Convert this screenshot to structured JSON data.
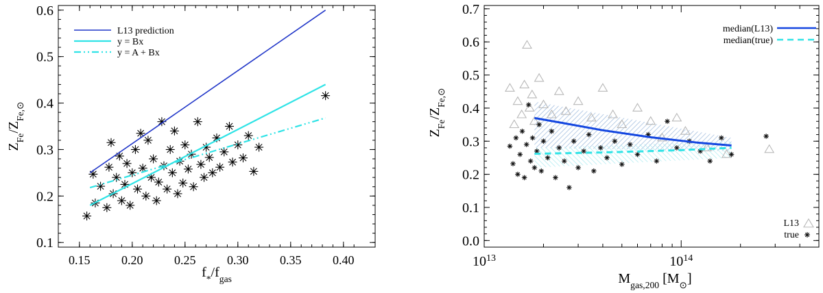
{
  "chart_data": [
    {
      "type": "scatter",
      "xlabel": "f*/fgas",
      "ylabel": "ZFe/ZFe,⊙",
      "xlim": [
        0.13,
        0.43
      ],
      "ylim": [
        0.09,
        0.61
      ],
      "xticks": [
        "0.15",
        "0.20",
        "0.25",
        "0.30",
        "0.35",
        "0.40"
      ],
      "yticks": [
        "0.1",
        "0.2",
        "0.3",
        "0.4",
        "0.5",
        "0.6"
      ],
      "legend_position": "top-left",
      "legend": [
        {
          "label": "L13 prediction",
          "color": "#1f35c8",
          "style": "solid"
        },
        {
          "label": "y = Bx",
          "color": "#2fe3e6",
          "style": "solid"
        },
        {
          "label": "y = A + Bx",
          "color": "#2fe3e6",
          "style": "dash-dot-dot"
        }
      ],
      "lines": [
        {
          "label": "L13 prediction",
          "x": [
            0.16,
            0.383
          ],
          "y": [
            0.25,
            0.6
          ],
          "color": "#1f35c8"
        },
        {
          "label": "y = Bx",
          "x": [
            0.16,
            0.383
          ],
          "y": [
            0.18,
            0.44
          ],
          "color": "#2fe3e6"
        },
        {
          "label": "y = A + Bx",
          "x": [
            0.16,
            0.383
          ],
          "y": [
            0.218,
            0.368
          ],
          "color": "#2fe3e6"
        }
      ],
      "scatter": {
        "marker": "asterisk",
        "points": [
          [
            0.157,
            0.157
          ],
          [
            0.163,
            0.247
          ],
          [
            0.165,
            0.185
          ],
          [
            0.17,
            0.221
          ],
          [
            0.176,
            0.175
          ],
          [
            0.178,
            0.262
          ],
          [
            0.18,
            0.315
          ],
          [
            0.182,
            0.205
          ],
          [
            0.185,
            0.24
          ],
          [
            0.188,
            0.286
          ],
          [
            0.19,
            0.19
          ],
          [
            0.193,
            0.225
          ],
          [
            0.195,
            0.27
          ],
          [
            0.198,
            0.18
          ],
          [
            0.2,
            0.25
          ],
          [
            0.203,
            0.3
          ],
          [
            0.205,
            0.215
          ],
          [
            0.208,
            0.335
          ],
          [
            0.21,
            0.26
          ],
          [
            0.213,
            0.2
          ],
          [
            0.215,
            0.32
          ],
          [
            0.218,
            0.24
          ],
          [
            0.22,
            0.28
          ],
          [
            0.223,
            0.19
          ],
          [
            0.225,
            0.23
          ],
          [
            0.228,
            0.36
          ],
          [
            0.23,
            0.265
          ],
          [
            0.233,
            0.215
          ],
          [
            0.236,
            0.3
          ],
          [
            0.238,
            0.25
          ],
          [
            0.24,
            0.34
          ],
          [
            0.243,
            0.205
          ],
          [
            0.245,
            0.275
          ],
          [
            0.248,
            0.228
          ],
          [
            0.25,
            0.31
          ],
          [
            0.253,
            0.258
          ],
          [
            0.256,
            0.29
          ],
          [
            0.258,
            0.22
          ],
          [
            0.262,
            0.36
          ],
          [
            0.265,
            0.268
          ],
          [
            0.268,
            0.24
          ],
          [
            0.27,
            0.305
          ],
          [
            0.273,
            0.283
          ],
          [
            0.276,
            0.25
          ],
          [
            0.28,
            0.325
          ],
          [
            0.283,
            0.262
          ],
          [
            0.287,
            0.295
          ],
          [
            0.292,
            0.35
          ],
          [
            0.295,
            0.273
          ],
          [
            0.3,
            0.31
          ],
          [
            0.305,
            0.282
          ],
          [
            0.31,
            0.33
          ],
          [
            0.315,
            0.253
          ],
          [
            0.32,
            0.305
          ],
          [
            0.383,
            0.416
          ]
        ]
      }
    },
    {
      "type": "scatter",
      "xlabel": "Mgas,200 [M⊙]",
      "ylabel": "ZFe/ZFe,⊙",
      "x_scale": "log",
      "xlim": [
        10000000000000.0,
        500000000000000.0
      ],
      "ylim": [
        -0.02,
        0.71
      ],
      "xticks": [
        {
          "value": 10000000000000.0,
          "base": "10",
          "exp": "13"
        },
        {
          "value": 100000000000000.0,
          "base": "10",
          "exp": "14"
        }
      ],
      "yticks": [
        "0.0",
        "0.1",
        "0.2",
        "0.3",
        "0.4",
        "0.5",
        "0.6",
        "0.7"
      ],
      "legend_position": "top-right",
      "legend": [
        {
          "label": "median(L13)",
          "color": "#1346e0",
          "style": "solid"
        },
        {
          "label": "median(true)",
          "color": "#2fe3e6",
          "style": "dashed"
        }
      ],
      "marker_legend_position": "bottom-right",
      "marker_legend": [
        {
          "label": "L13",
          "marker": "triangle"
        },
        {
          "label": "true",
          "marker": "asterisk"
        }
      ],
      "bands": [
        {
          "name": "L13",
          "color": "#8fb0d8",
          "x": [
            18000000000000.0,
            180000000000000.0
          ],
          "lower": [
            0.28,
            0.27
          ],
          "upper": [
            0.42,
            0.31
          ]
        },
        {
          "name": "true",
          "color": "#9fe8ee",
          "x": [
            18000000000000.0,
            180000000000000.0
          ],
          "lower": [
            0.22,
            0.25
          ],
          "upper": [
            0.28,
            0.3
          ]
        }
      ],
      "medians": [
        {
          "name": "median(L13)",
          "x": [
            18000000000000.0,
            25000000000000.0,
            40000000000000.0,
            70000000000000.0,
            120000000000000.0,
            180000000000000.0
          ],
          "y": [
            0.37,
            0.355,
            0.333,
            0.312,
            0.296,
            0.287
          ],
          "color": "#1346e0"
        },
        {
          "name": "median(true)",
          "x": [
            18000000000000.0,
            40000000000000.0,
            100000000000000.0,
            180000000000000.0
          ],
          "y": [
            0.262,
            0.266,
            0.273,
            0.28
          ],
          "color": "#2fe3e6"
        }
      ],
      "triangles": [
        [
          13500000000000.0,
          0.46
        ],
        [
          14200000000000.0,
          0.35
        ],
        [
          14800000000000.0,
          0.42
        ],
        [
          15500000000000.0,
          0.38
        ],
        [
          16000000000000.0,
          0.47
        ],
        [
          16500000000000.0,
          0.59
        ],
        [
          17000000000000.0,
          0.4
        ],
        [
          17500000000000.0,
          0.44
        ],
        [
          18000000000000.0,
          0.36
        ],
        [
          19000000000000.0,
          0.49
        ],
        [
          20000000000000.0,
          0.41
        ],
        [
          22000000000000.0,
          0.38
        ],
        [
          24000000000000.0,
          0.45
        ],
        [
          26000000000000.0,
          0.39
        ],
        [
          30000000000000.0,
          0.42
        ],
        [
          35000000000000.0,
          0.37
        ],
        [
          40000000000000.0,
          0.46
        ],
        [
          45000000000000.0,
          0.38
        ],
        [
          50000000000000.0,
          0.35
        ],
        [
          60000000000000.0,
          0.4
        ],
        [
          70000000000000.0,
          0.36
        ],
        [
          80000000000000.0,
          0.31
        ],
        [
          95000000000000.0,
          0.37
        ],
        [
          105000000000000.0,
          0.33
        ],
        [
          135000000000000.0,
          0.28
        ],
        [
          170000000000000.0,
          0.26
        ],
        [
          280000000000000.0,
          0.275
        ]
      ],
      "asterisks": [
        [
          13500000000000.0,
          0.285
        ],
        [
          14000000000000.0,
          0.232
        ],
        [
          14500000000000.0,
          0.31
        ],
        [
          14800000000000.0,
          0.2
        ],
        [
          15200000000000.0,
          0.26
        ],
        [
          15600000000000.0,
          0.33
        ],
        [
          16000000000000.0,
          0.19
        ],
        [
          16400000000000.0,
          0.29
        ],
        [
          16800000000000.0,
          0.41
        ],
        [
          17200000000000.0,
          0.24
        ],
        [
          17600000000000.0,
          0.31
        ],
        [
          18000000000000.0,
          0.22
        ],
        [
          18500000000000.0,
          0.27
        ],
        [
          19000000000000.0,
          0.35
        ],
        [
          19500000000000.0,
          0.21
        ],
        [
          20000000000000.0,
          0.3
        ],
        [
          21000000000000.0,
          0.25
        ],
        [
          22000000000000.0,
          0.33
        ],
        [
          23000000000000.0,
          0.19
        ],
        [
          24000000000000.0,
          0.28
        ],
        [
          25500000000000.0,
          0.24
        ],
        [
          27000000000000.0,
          0.16
        ],
        [
          28500000000000.0,
          0.3
        ],
        [
          30000000000000.0,
          0.22
        ],
        [
          32000000000000.0,
          0.27
        ],
        [
          34000000000000.0,
          0.32
        ],
        [
          36000000000000.0,
          0.21
        ],
        [
          39000000000000.0,
          0.28
        ],
        [
          42000000000000.0,
          0.25
        ],
        [
          46000000000000.0,
          0.3
        ],
        [
          50000000000000.0,
          0.23
        ],
        [
          55000000000000.0,
          0.29
        ],
        [
          60000000000000.0,
          0.26
        ],
        [
          68000000000000.0,
          0.32
        ],
        [
          75000000000000.0,
          0.24
        ],
        [
          85000000000000.0,
          0.36
        ],
        [
          95000000000000.0,
          0.28
        ],
        [
          110000000000000.0,
          0.3
        ],
        [
          125000000000000.0,
          0.27
        ],
        [
          140000000000000.0,
          0.24
        ],
        [
          160000000000000.0,
          0.31
        ],
        [
          180000000000000.0,
          0.26
        ],
        [
          270000000000000.0,
          0.315
        ]
      ]
    }
  ]
}
